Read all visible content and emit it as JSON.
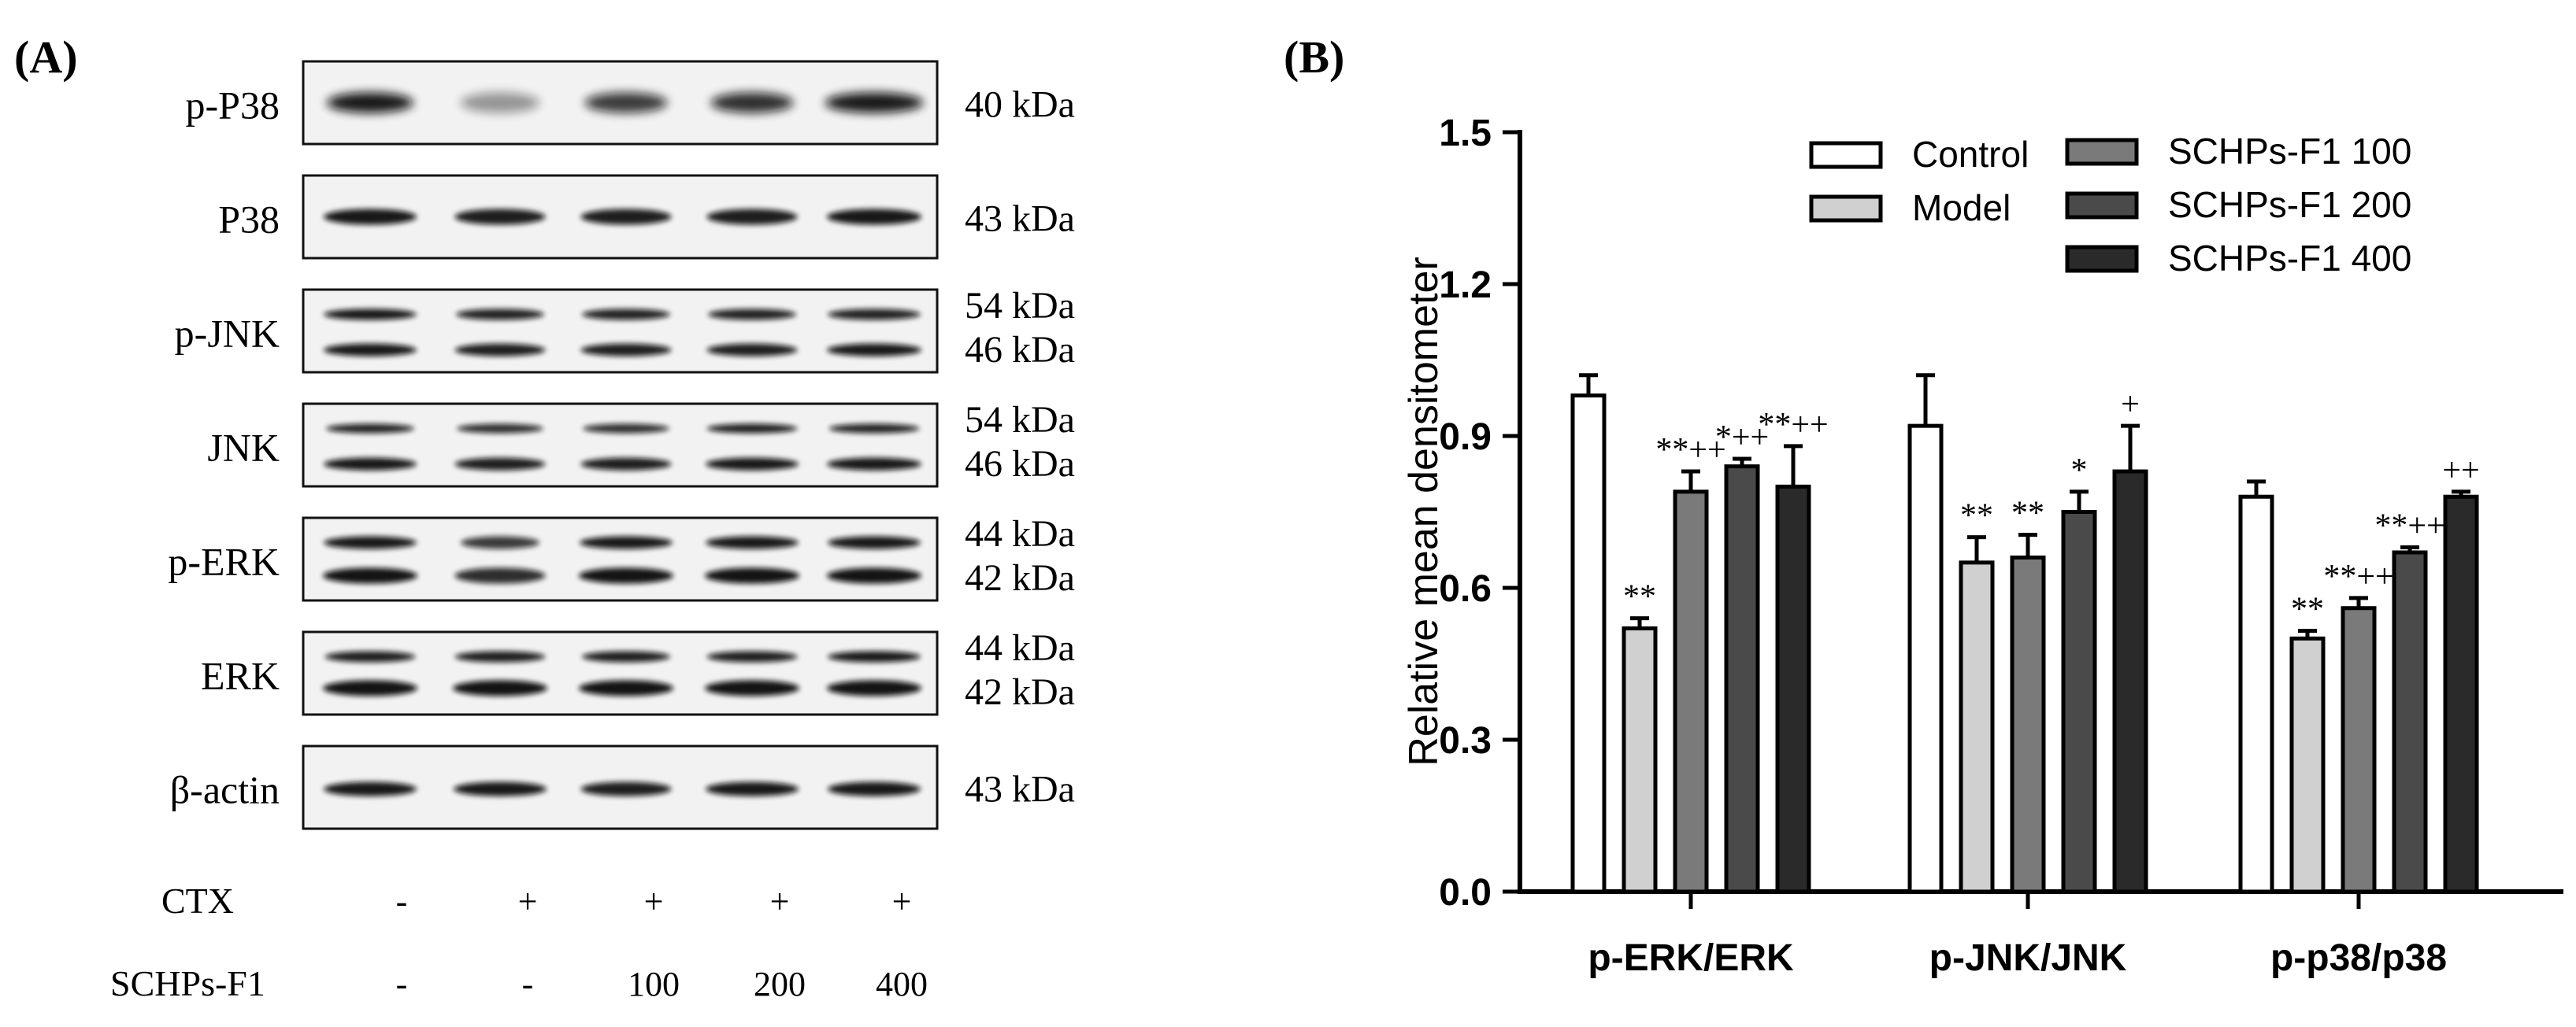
{
  "panelA": {
    "label": "(A)",
    "blots": [
      {
        "name": "p-P38",
        "kda": [
          "40 kDa"
        ],
        "style": "pp38"
      },
      {
        "name": "P38",
        "kda": [
          "43 kDa"
        ],
        "style": "p38"
      },
      {
        "name": "p-JNK",
        "kda": [
          "54 kDa",
          "46 kDa"
        ],
        "style": "pjnk"
      },
      {
        "name": "JNK",
        "kda": [
          "54 kDa",
          "46 kDa"
        ],
        "style": "jnk"
      },
      {
        "name": "p-ERK",
        "kda": [
          "44 kDa",
          "42 kDa"
        ],
        "style": "perk"
      },
      {
        "name": "ERK",
        "kda": [
          "44 kDa",
          "42 kDa"
        ],
        "style": "erk"
      },
      {
        "name": "β-actin",
        "kda": [
          "43 kDa"
        ],
        "style": "actin"
      }
    ],
    "treatment_rows": [
      {
        "label": "CTX",
        "values": [
          "-",
          "+",
          "+",
          "+",
          "+"
        ]
      },
      {
        "label": "SCHPs-F1",
        "values": [
          "-",
          "-",
          "100",
          "200",
          "400"
        ]
      }
    ]
  },
  "panelB": {
    "label": "(B)"
  },
  "chart_data": {
    "type": "bar",
    "title": "",
    "xlabel": "",
    "ylabel": "Relative mean densitometer",
    "ylim": [
      0,
      1.5
    ],
    "yticks": [
      "0.0",
      "0.3",
      "0.6",
      "0.9",
      "1.2",
      "1.5"
    ],
    "categories": [
      "p-ERK/ERK",
      "p-JNK/JNK",
      "p-p38/p38"
    ],
    "legend_position": "top-right",
    "grid": false,
    "series": [
      {
        "name": "Control",
        "color": "#ffffff",
        "values": [
          0.98,
          0.92,
          0.78
        ],
        "errors": [
          0.04,
          0.1,
          0.03
        ],
        "annotations": [
          "",
          "",
          ""
        ]
      },
      {
        "name": "Model",
        "color": "#d0d0d0",
        "values": [
          0.52,
          0.65,
          0.5
        ],
        "errors": [
          0.02,
          0.05,
          0.015
        ],
        "annotations": [
          "**",
          "**",
          "**"
        ]
      },
      {
        "name": "SCHPs-F1 100",
        "color": "#7a7a7a",
        "values": [
          0.79,
          0.66,
          0.56
        ],
        "errors": [
          0.04,
          0.045,
          0.02
        ],
        "annotations": [
          "**++",
          "**",
          "**++"
        ]
      },
      {
        "name": "SCHPs-F1 200",
        "color": "#4a4a4a",
        "values": [
          0.84,
          0.75,
          0.67
        ],
        "errors": [
          0.015,
          0.04,
          0.01
        ],
        "annotations": [
          "*++",
          "*",
          "**++"
        ]
      },
      {
        "name": "SCHPs-F1 400",
        "color": "#2a2a2a",
        "values": [
          0.8,
          0.83,
          0.78
        ],
        "errors": [
          0.08,
          0.09,
          0.01
        ],
        "annotations": [
          "**++",
          "+",
          "++"
        ]
      }
    ]
  }
}
